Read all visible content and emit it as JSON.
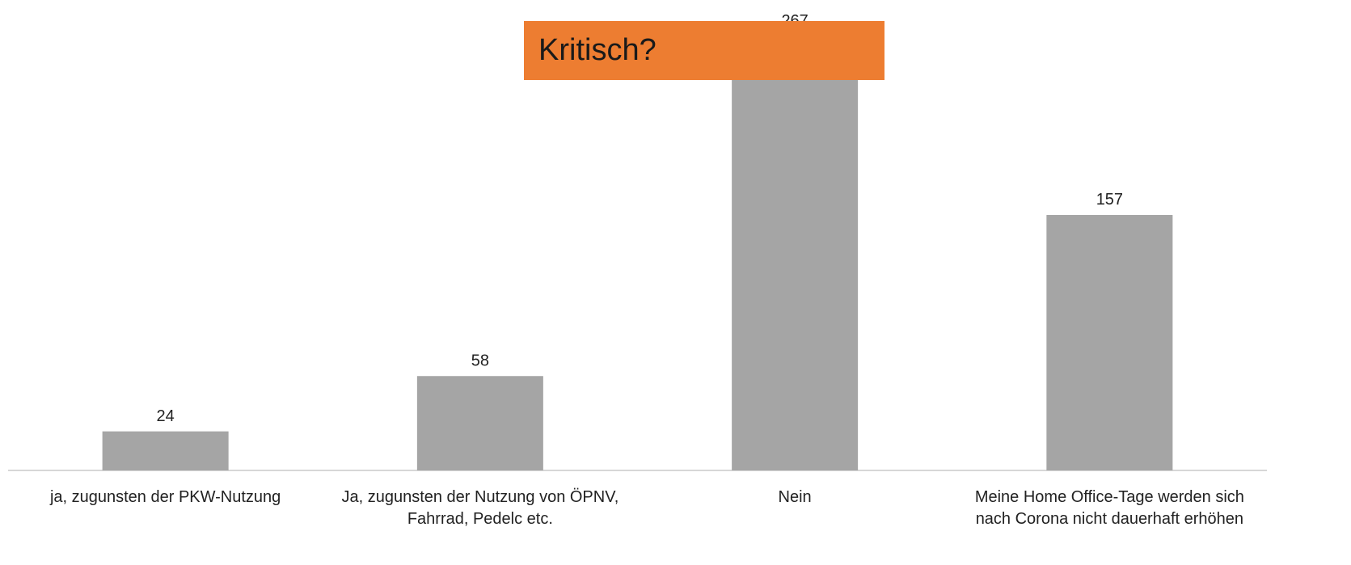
{
  "chart_data": {
    "type": "bar",
    "categories": [
      "ja, zugunsten der PKW-Nutzung",
      "Ja, zugunsten der Nutzung von ÖPNV, Fahrrad, Pedelc etc.",
      "Nein",
      "Meine Home Office-Tage werden sich nach Corona nicht dauerhaft erhöhen"
    ],
    "values": [
      24,
      58,
      267,
      157
    ],
    "color": "#a5a5a5",
    "annotation": "Kritisch?"
  }
}
